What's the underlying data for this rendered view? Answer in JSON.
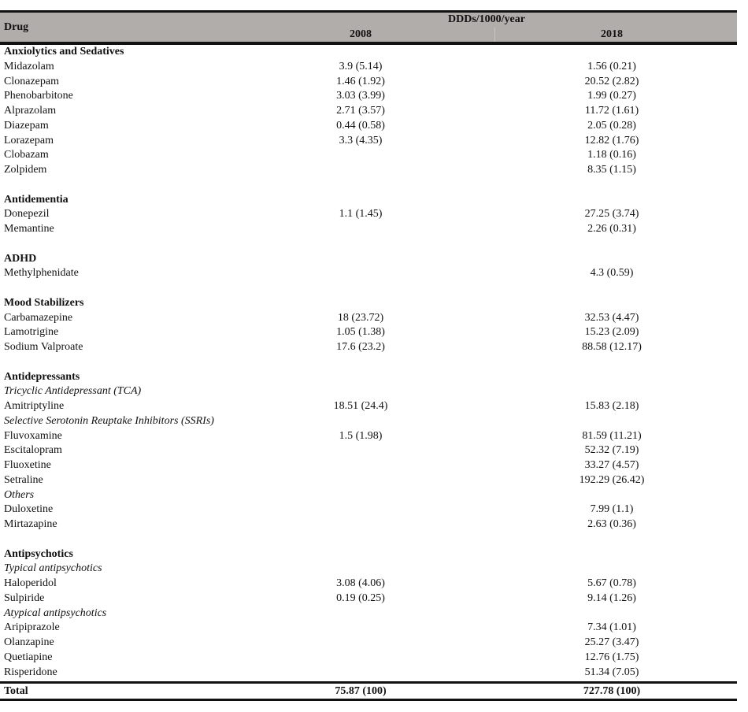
{
  "header": {
    "drug": "Drug",
    "unit": "DDDs/1000/year",
    "year1": "2008",
    "year2": "2018"
  },
  "rows": [
    {
      "type": "heading",
      "name": "Anxiolytics and Sedatives",
      "v2008": "",
      "v2018": ""
    },
    {
      "type": "item",
      "name": "Midazolam",
      "v2008": "3.9 (5.14)",
      "v2018": "1.56 (0.21)"
    },
    {
      "type": "item",
      "name": "Clonazepam",
      "v2008": "1.46 (1.92)",
      "v2018": "20.52 (2.82)"
    },
    {
      "type": "item",
      "name": "Phenobarbitone",
      "v2008": "3.03 (3.99)",
      "v2018": "1.99 (0.27)"
    },
    {
      "type": "item",
      "name": "Alprazolam",
      "v2008": "2.71 (3.57)",
      "v2018": "11.72 (1.61)"
    },
    {
      "type": "item",
      "name": "Diazepam",
      "v2008": "0.44 (0.58)",
      "v2018": "2.05 (0.28)"
    },
    {
      "type": "item",
      "name": "Lorazepam",
      "v2008": "3.3 (4.35)",
      "v2018": "12.82 (1.76)"
    },
    {
      "type": "item",
      "name": "Clobazam",
      "v2008": "",
      "v2018": "1.18 (0.16)"
    },
    {
      "type": "item",
      "name": "Zolpidem",
      "v2008": "",
      "v2018": "8.35 (1.15)"
    },
    {
      "type": "blank",
      "name": "",
      "v2008": "",
      "v2018": ""
    },
    {
      "type": "heading",
      "name": "Antidementia",
      "v2008": "",
      "v2018": ""
    },
    {
      "type": "item",
      "name": "Donepezil",
      "v2008": "1.1 (1.45)",
      "v2018": "27.25 (3.74)"
    },
    {
      "type": "item",
      "name": "Memantine",
      "v2008": "",
      "v2018": "2.26 (0.31)"
    },
    {
      "type": "blank",
      "name": "",
      "v2008": "",
      "v2018": ""
    },
    {
      "type": "heading",
      "name": "ADHD",
      "v2008": "",
      "v2018": ""
    },
    {
      "type": "item",
      "name": "Methylphenidate",
      "v2008": "",
      "v2018": "4.3 (0.59)"
    },
    {
      "type": "blank",
      "name": "",
      "v2008": "",
      "v2018": ""
    },
    {
      "type": "heading",
      "name": "Mood Stabilizers",
      "v2008": "",
      "v2018": ""
    },
    {
      "type": "item",
      "name": "Carbamazepine",
      "v2008": "18 (23.72)",
      "v2018": "32.53 (4.47)"
    },
    {
      "type": "item",
      "name": "Lamotrigine",
      "v2008": "1.05 (1.38)",
      "v2018": "15.23 (2.09)"
    },
    {
      "type": "item",
      "name": "Sodium Valproate",
      "v2008": "17.6 (23.2)",
      "v2018": "88.58 (12.17)"
    },
    {
      "type": "blank",
      "name": "",
      "v2008": "",
      "v2018": ""
    },
    {
      "type": "heading",
      "name": "Antidepressants",
      "v2008": "",
      "v2018": ""
    },
    {
      "type": "sub",
      "name": "Tricyclic Antidepressant (TCA)",
      "v2008": "",
      "v2018": ""
    },
    {
      "type": "item",
      "name": "Amitriptyline",
      "v2008": "18.51 (24.4)",
      "v2018": "15.83 (2.18)"
    },
    {
      "type": "sub",
      "name": "Selective Serotonin Reuptake Inhibitors (SSRIs)",
      "v2008": "",
      "v2018": ""
    },
    {
      "type": "item",
      "name": "Fluvoxamine",
      "v2008": "1.5 (1.98)",
      "v2018": "81.59 (11.21)"
    },
    {
      "type": "item",
      "name": "Escitalopram",
      "v2008": "",
      "v2018": "52.32 (7.19)"
    },
    {
      "type": "item",
      "name": "Fluoxetine",
      "v2008": "",
      "v2018": "33.27 (4.57)"
    },
    {
      "type": "item",
      "name": "Setraline",
      "v2008": "",
      "v2018": "192.29 (26.42)"
    },
    {
      "type": "sub",
      "name": "Others",
      "v2008": "",
      "v2018": ""
    },
    {
      "type": "item",
      "name": "Duloxetine",
      "v2008": "",
      "v2018": "7.99 (1.1)"
    },
    {
      "type": "item",
      "name": "Mirtazapine",
      "v2008": "",
      "v2018": "2.63 (0.36)"
    },
    {
      "type": "blank",
      "name": "",
      "v2008": "",
      "v2018": ""
    },
    {
      "type": "heading",
      "name": "Antipsychotics",
      "v2008": "",
      "v2018": ""
    },
    {
      "type": "sub",
      "name": "Typical antipsychotics",
      "v2008": "",
      "v2018": ""
    },
    {
      "type": "item",
      "name": "Haloperidol",
      "v2008": "3.08 (4.06)",
      "v2018": "5.67 (0.78)"
    },
    {
      "type": "item",
      "name": "Sulpiride",
      "v2008": "0.19 (0.25)",
      "v2018": "9.14 (1.26)"
    },
    {
      "type": "sub",
      "name": "Atypical antipsychotics",
      "v2008": "",
      "v2018": ""
    },
    {
      "type": "item",
      "name": "Aripiprazole",
      "v2008": "",
      "v2018": "7.34 (1.01)"
    },
    {
      "type": "item",
      "name": "Olanzapine",
      "v2008": "",
      "v2018": "25.27 (3.47)"
    },
    {
      "type": "item",
      "name": "Quetiapine",
      "v2008": "",
      "v2018": "12.76 (1.75)"
    },
    {
      "type": "item",
      "name": "Risperidone",
      "v2008": "",
      "v2018": "51.34 (7.05)"
    }
  ],
  "total": {
    "name": "Total",
    "v2008": "75.87 (100)",
    "v2018": "727.78 (100)"
  }
}
